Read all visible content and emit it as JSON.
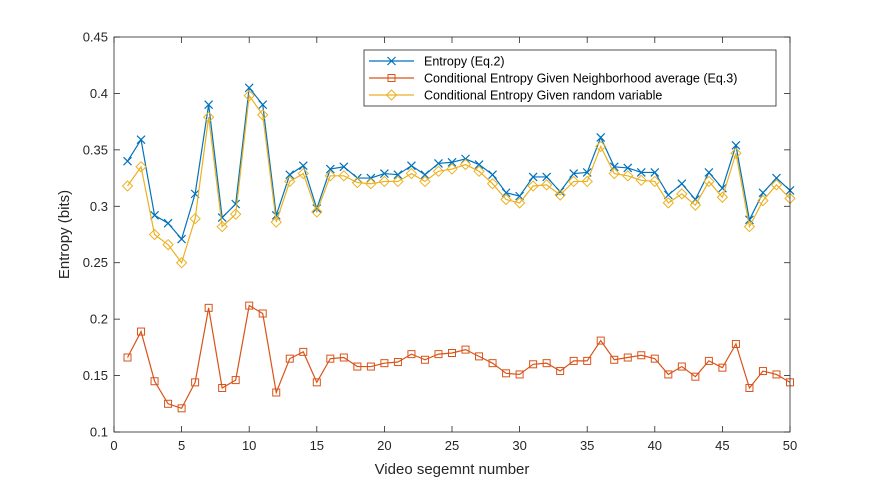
{
  "chart_data": {
    "type": "line",
    "title": "",
    "xlabel": "Video segemnt number",
    "ylabel": "Entropy (bits)",
    "xlim": [
      0,
      50
    ],
    "ylim": [
      0.1,
      0.45
    ],
    "xticks": [
      0,
      5,
      10,
      15,
      20,
      25,
      30,
      35,
      40,
      45,
      50
    ],
    "yticks": [
      0.1,
      0.15,
      0.2,
      0.25,
      0.3,
      0.35,
      0.4,
      0.45
    ],
    "xtick_labels": [
      "0",
      "5",
      "10",
      "15",
      "20",
      "25",
      "30",
      "35",
      "40",
      "45",
      "50"
    ],
    "ytick_labels": [
      "0.1",
      "0.15",
      "0.2",
      "0.25",
      "0.3",
      "0.35",
      "0.4",
      "0.45"
    ],
    "grid": false,
    "legend_position": "top-right",
    "x": [
      1,
      2,
      3,
      4,
      5,
      6,
      7,
      8,
      9,
      10,
      11,
      12,
      13,
      14,
      15,
      16,
      17,
      18,
      19,
      20,
      21,
      22,
      23,
      24,
      25,
      26,
      27,
      28,
      29,
      30,
      31,
      32,
      33,
      34,
      35,
      36,
      37,
      38,
      39,
      40,
      41,
      42,
      43,
      44,
      45,
      46,
      47,
      48,
      49,
      50
    ],
    "series": [
      {
        "name": "Entropy (Eq.2)",
        "color": "#0072BD",
        "marker": "x",
        "values": [
          0.34,
          0.359,
          0.292,
          0.285,
          0.271,
          0.311,
          0.39,
          0.29,
          0.302,
          0.405,
          0.39,
          0.292,
          0.328,
          0.336,
          0.298,
          0.333,
          0.335,
          0.325,
          0.325,
          0.329,
          0.328,
          0.336,
          0.328,
          0.338,
          0.339,
          0.342,
          0.337,
          0.328,
          0.312,
          0.309,
          0.326,
          0.326,
          0.313,
          0.329,
          0.33,
          0.361,
          0.335,
          0.334,
          0.33,
          0.33,
          0.31,
          0.32,
          0.306,
          0.33,
          0.316,
          0.354,
          0.288,
          0.312,
          0.325,
          0.314
        ]
      },
      {
        "name": "Conditional Entropy Given Neighborhood average (Eq.3)",
        "color": "#D95319",
        "marker": "square",
        "values": [
          0.166,
          0.189,
          0.145,
          0.125,
          0.121,
          0.144,
          0.21,
          0.139,
          0.146,
          0.212,
          0.205,
          0.135,
          0.165,
          0.171,
          0.144,
          0.165,
          0.166,
          0.158,
          0.158,
          0.161,
          0.162,
          0.169,
          0.164,
          0.169,
          0.17,
          0.173,
          0.167,
          0.161,
          0.152,
          0.151,
          0.16,
          0.161,
          0.154,
          0.163,
          0.163,
          0.181,
          0.164,
          0.166,
          0.168,
          0.165,
          0.151,
          0.158,
          0.149,
          0.163,
          0.157,
          0.178,
          0.139,
          0.154,
          0.151,
          0.144
        ]
      },
      {
        "name": "Conditional Entropy Given random variable",
        "color": "#EDB120",
        "marker": "diamond",
        "values": [
          0.318,
          0.335,
          0.275,
          0.266,
          0.25,
          0.289,
          0.379,
          0.282,
          0.293,
          0.398,
          0.381,
          0.286,
          0.322,
          0.329,
          0.295,
          0.327,
          0.327,
          0.321,
          0.32,
          0.322,
          0.322,
          0.329,
          0.322,
          0.331,
          0.333,
          0.337,
          0.331,
          0.32,
          0.306,
          0.303,
          0.318,
          0.319,
          0.31,
          0.322,
          0.322,
          0.353,
          0.329,
          0.327,
          0.323,
          0.322,
          0.303,
          0.311,
          0.301,
          0.322,
          0.308,
          0.347,
          0.282,
          0.305,
          0.319,
          0.307
        ]
      }
    ]
  }
}
